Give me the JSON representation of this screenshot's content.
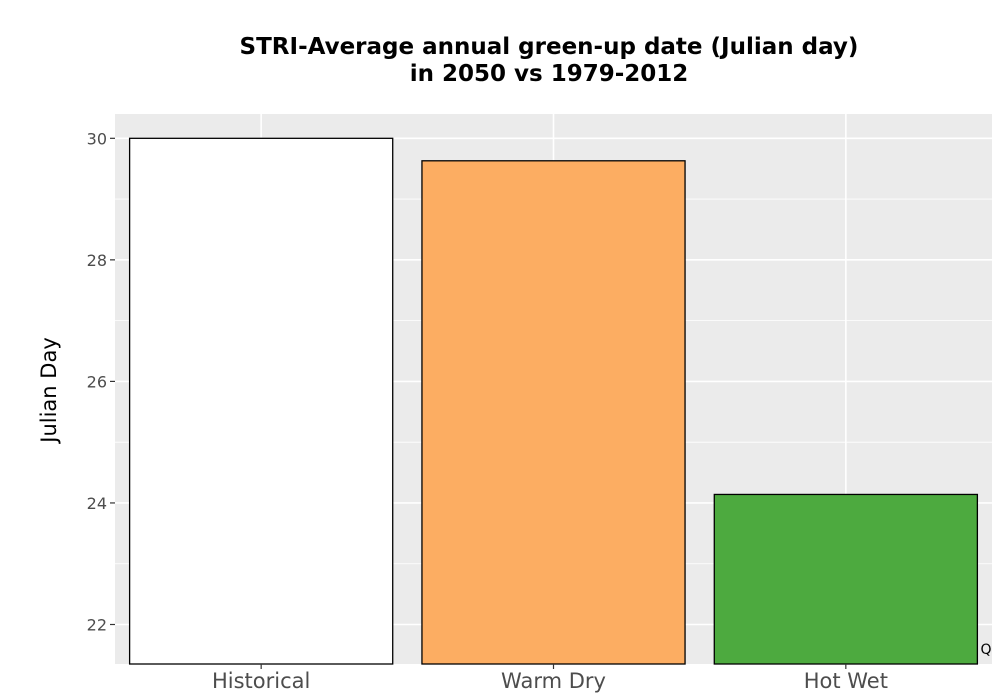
{
  "chart_data": {
    "type": "bar",
    "title": [
      "STRI-Average annual green-up date (Julian day)",
      "in 2050 vs 1979-2012"
    ],
    "ylabel": "Julian Day",
    "xlabel": "",
    "categories": [
      "Historical",
      "Warm Dry",
      "Hot Wet"
    ],
    "values": [
      30.0,
      29.63,
      24.14
    ],
    "colors": [
      "#ffffff",
      "#fcad62",
      "#4daa3f"
    ],
    "ylim": [
      21.35,
      30.4
    ],
    "yticks": [
      22,
      24,
      26,
      28,
      30
    ],
    "grid": true,
    "legend": "none",
    "background_color": "#ebebeb",
    "corner_mark": "Q"
  }
}
